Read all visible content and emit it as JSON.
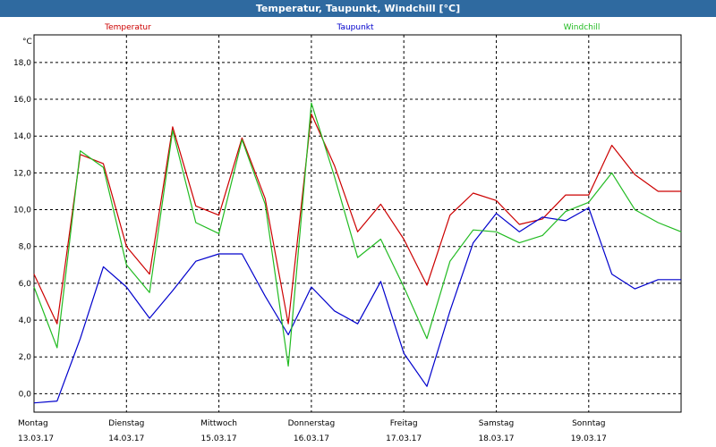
{
  "window": {
    "title": "Temperatur, Taupunkt, Windchill [°C]"
  },
  "colors": {
    "titlebar": "#2f6aa0",
    "temperatur": "#cc0000",
    "taupunkt": "#0000cc",
    "windchill": "#22bb22"
  },
  "chart_data": {
    "type": "line",
    "title": "Temperatur, Taupunkt, Windchill [°C]",
    "ylabel": "°C",
    "ylim": [
      -1.0,
      19.5
    ],
    "xlim": [
      0,
      7
    ],
    "grid": true,
    "yticks": [
      0.0,
      2.0,
      4.0,
      6.0,
      8.0,
      10.0,
      12.0,
      14.0,
      16.0,
      18.0
    ],
    "ytick_labels": [
      "0,0",
      "2,0",
      "4,0",
      "6,0",
      "8,0",
      "10,0",
      "12,0",
      "14,0",
      "16,0",
      "18,0"
    ],
    "xticks": [
      {
        "day": "Montag",
        "date": "13.03.17"
      },
      {
        "day": "Dienstag",
        "date": "14.03.17"
      },
      {
        "day": "Mittwoch",
        "date": "15.03.17"
      },
      {
        "day": "Donnerstag",
        "date": "16.03.17"
      },
      {
        "day": "Freitag",
        "date": "17.03.17"
      },
      {
        "day": "Samstag",
        "date": "18.03.17"
      },
      {
        "day": "Sonntag",
        "date": "19.03.17"
      }
    ],
    "x": [
      0,
      0.25,
      0.5,
      0.75,
      1.0,
      1.25,
      1.5,
      1.75,
      2.0,
      2.25,
      2.5,
      2.75,
      3.0,
      3.25,
      3.5,
      3.75,
      4.0,
      4.25,
      4.5,
      4.75,
      5.0,
      5.25,
      5.5,
      5.75,
      6.0,
      6.25,
      6.5,
      6.75,
      7.0
    ],
    "series": [
      {
        "name": "Temperatur",
        "color": "#cc0000",
        "legend_position": "top-left",
        "values": [
          6.5,
          3.8,
          13.0,
          12.5,
          8.0,
          6.5,
          14.5,
          10.2,
          9.7,
          13.9,
          10.6,
          3.8,
          15.2,
          12.4,
          8.8,
          10.3,
          8.4,
          5.9,
          9.7,
          10.9,
          10.5,
          9.2,
          9.5,
          10.8,
          10.8,
          13.5,
          11.9,
          11.0,
          11.0
        ]
      },
      {
        "name": "Taupunkt",
        "color": "#0000cc",
        "legend_position": "top-center",
        "values": [
          -0.5,
          -0.4,
          3.0,
          6.9,
          5.8,
          4.1,
          5.6,
          7.2,
          7.6,
          7.6,
          5.3,
          3.2,
          5.8,
          4.5,
          3.8,
          6.1,
          2.2,
          0.4,
          4.5,
          8.2,
          9.8,
          8.8,
          9.6,
          9.4,
          10.1,
          6.5,
          5.7,
          6.2,
          6.2
        ]
      },
      {
        "name": "Windchill",
        "color": "#22bb22",
        "legend_position": "top-right",
        "values": [
          5.8,
          2.5,
          13.2,
          12.3,
          7.0,
          5.5,
          14.3,
          9.3,
          8.7,
          13.8,
          10.3,
          1.5,
          15.8,
          11.8,
          7.4,
          8.4,
          5.8,
          3.0,
          7.2,
          8.9,
          8.8,
          8.2,
          8.6,
          9.9,
          10.4,
          12.0,
          10.0,
          9.3,
          8.8
        ]
      }
    ]
  }
}
